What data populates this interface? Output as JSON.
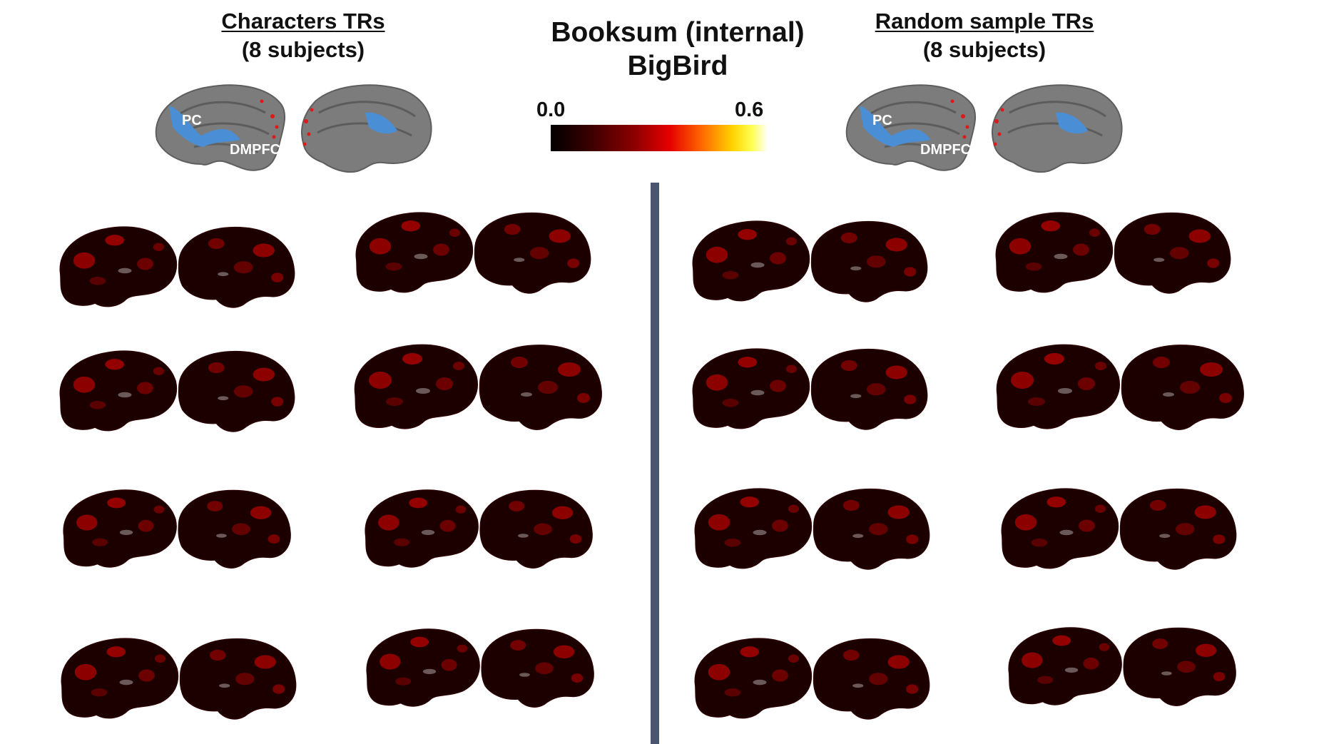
{
  "figure": {
    "center_title_line1": "Booksum (internal)",
    "center_title_line2": "BigBird",
    "colorbar": {
      "min_label": "0.0",
      "max_label": "0.6",
      "colormap": "hot"
    },
    "panels": [
      {
        "title": "Characters TRs",
        "subtitle": "(8 subjects)",
        "roi_labels": [
          "PC",
          "DMPFC"
        ],
        "roi_color": "#4a90d9",
        "subjects": 8
      },
      {
        "title": "Random sample TRs",
        "subtitle": "(8 subjects)",
        "roi_labels": [
          "PC",
          "DMPFC"
        ],
        "roi_color": "#4a90d9",
        "subjects": 8
      }
    ],
    "colors": {
      "divider": "#4a5670",
      "brain_reference": "#808080",
      "brain_map_base": "#1a0000"
    }
  }
}
